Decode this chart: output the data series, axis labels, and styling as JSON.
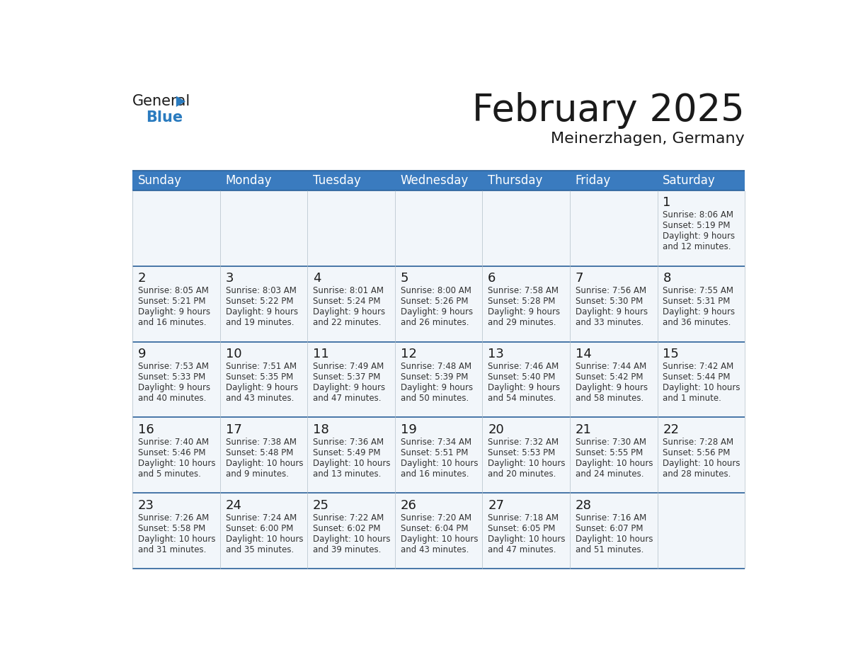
{
  "title": "February 2025",
  "subtitle": "Meinerzhagen, Germany",
  "header_bg_color": "#3a7bbf",
  "header_text_color": "#ffffff",
  "cell_bg_color": "#f2f6fa",
  "border_color": "#2a6099",
  "day_headers": [
    "Sunday",
    "Monday",
    "Tuesday",
    "Wednesday",
    "Thursday",
    "Friday",
    "Saturday"
  ],
  "days": [
    {
      "day": 1,
      "col": 6,
      "row": 0,
      "sunrise": "8:06 AM",
      "sunset": "5:19 PM",
      "daylight_hours": 9,
      "daylight_minutes": 12
    },
    {
      "day": 2,
      "col": 0,
      "row": 1,
      "sunrise": "8:05 AM",
      "sunset": "5:21 PM",
      "daylight_hours": 9,
      "daylight_minutes": 16
    },
    {
      "day": 3,
      "col": 1,
      "row": 1,
      "sunrise": "8:03 AM",
      "sunset": "5:22 PM",
      "daylight_hours": 9,
      "daylight_minutes": 19
    },
    {
      "day": 4,
      "col": 2,
      "row": 1,
      "sunrise": "8:01 AM",
      "sunset": "5:24 PM",
      "daylight_hours": 9,
      "daylight_minutes": 22
    },
    {
      "day": 5,
      "col": 3,
      "row": 1,
      "sunrise": "8:00 AM",
      "sunset": "5:26 PM",
      "daylight_hours": 9,
      "daylight_minutes": 26
    },
    {
      "day": 6,
      "col": 4,
      "row": 1,
      "sunrise": "7:58 AM",
      "sunset": "5:28 PM",
      "daylight_hours": 9,
      "daylight_minutes": 29
    },
    {
      "day": 7,
      "col": 5,
      "row": 1,
      "sunrise": "7:56 AM",
      "sunset": "5:30 PM",
      "daylight_hours": 9,
      "daylight_minutes": 33
    },
    {
      "day": 8,
      "col": 6,
      "row": 1,
      "sunrise": "7:55 AM",
      "sunset": "5:31 PM",
      "daylight_hours": 9,
      "daylight_minutes": 36
    },
    {
      "day": 9,
      "col": 0,
      "row": 2,
      "sunrise": "7:53 AM",
      "sunset": "5:33 PM",
      "daylight_hours": 9,
      "daylight_minutes": 40
    },
    {
      "day": 10,
      "col": 1,
      "row": 2,
      "sunrise": "7:51 AM",
      "sunset": "5:35 PM",
      "daylight_hours": 9,
      "daylight_minutes": 43
    },
    {
      "day": 11,
      "col": 2,
      "row": 2,
      "sunrise": "7:49 AM",
      "sunset": "5:37 PM",
      "daylight_hours": 9,
      "daylight_minutes": 47
    },
    {
      "day": 12,
      "col": 3,
      "row": 2,
      "sunrise": "7:48 AM",
      "sunset": "5:39 PM",
      "daylight_hours": 9,
      "daylight_minutes": 50
    },
    {
      "day": 13,
      "col": 4,
      "row": 2,
      "sunrise": "7:46 AM",
      "sunset": "5:40 PM",
      "daylight_hours": 9,
      "daylight_minutes": 54
    },
    {
      "day": 14,
      "col": 5,
      "row": 2,
      "sunrise": "7:44 AM",
      "sunset": "5:42 PM",
      "daylight_hours": 9,
      "daylight_minutes": 58
    },
    {
      "day": 15,
      "col": 6,
      "row": 2,
      "sunrise": "7:42 AM",
      "sunset": "5:44 PM",
      "daylight_hours": 10,
      "daylight_minutes": 1
    },
    {
      "day": 16,
      "col": 0,
      "row": 3,
      "sunrise": "7:40 AM",
      "sunset": "5:46 PM",
      "daylight_hours": 10,
      "daylight_minutes": 5
    },
    {
      "day": 17,
      "col": 1,
      "row": 3,
      "sunrise": "7:38 AM",
      "sunset": "5:48 PM",
      "daylight_hours": 10,
      "daylight_minutes": 9
    },
    {
      "day": 18,
      "col": 2,
      "row": 3,
      "sunrise": "7:36 AM",
      "sunset": "5:49 PM",
      "daylight_hours": 10,
      "daylight_minutes": 13
    },
    {
      "day": 19,
      "col": 3,
      "row": 3,
      "sunrise": "7:34 AM",
      "sunset": "5:51 PM",
      "daylight_hours": 10,
      "daylight_minutes": 16
    },
    {
      "day": 20,
      "col": 4,
      "row": 3,
      "sunrise": "7:32 AM",
      "sunset": "5:53 PM",
      "daylight_hours": 10,
      "daylight_minutes": 20
    },
    {
      "day": 21,
      "col": 5,
      "row": 3,
      "sunrise": "7:30 AM",
      "sunset": "5:55 PM",
      "daylight_hours": 10,
      "daylight_minutes": 24
    },
    {
      "day": 22,
      "col": 6,
      "row": 3,
      "sunrise": "7:28 AM",
      "sunset": "5:56 PM",
      "daylight_hours": 10,
      "daylight_minutes": 28
    },
    {
      "day": 23,
      "col": 0,
      "row": 4,
      "sunrise": "7:26 AM",
      "sunset": "5:58 PM",
      "daylight_hours": 10,
      "daylight_minutes": 31
    },
    {
      "day": 24,
      "col": 1,
      "row": 4,
      "sunrise": "7:24 AM",
      "sunset": "6:00 PM",
      "daylight_hours": 10,
      "daylight_minutes": 35
    },
    {
      "day": 25,
      "col": 2,
      "row": 4,
      "sunrise": "7:22 AM",
      "sunset": "6:02 PM",
      "daylight_hours": 10,
      "daylight_minutes": 39
    },
    {
      "day": 26,
      "col": 3,
      "row": 4,
      "sunrise": "7:20 AM",
      "sunset": "6:04 PM",
      "daylight_hours": 10,
      "daylight_minutes": 43
    },
    {
      "day": 27,
      "col": 4,
      "row": 4,
      "sunrise": "7:18 AM",
      "sunset": "6:05 PM",
      "daylight_hours": 10,
      "daylight_minutes": 47
    },
    {
      "day": 28,
      "col": 5,
      "row": 4,
      "sunrise": "7:16 AM",
      "sunset": "6:07 PM",
      "daylight_hours": 10,
      "daylight_minutes": 51
    }
  ],
  "num_rows": 5,
  "num_cols": 7,
  "logo_text_general": "General",
  "logo_text_blue": "Blue",
  "logo_color_general": "#1a1a1a",
  "logo_color_blue": "#2a7bbf",
  "logo_triangle_color": "#2a7bbf",
  "title_fontsize": 38,
  "subtitle_fontsize": 16,
  "day_header_fontsize": 12,
  "day_num_fontsize": 13,
  "cell_text_fontsize": 8.5
}
